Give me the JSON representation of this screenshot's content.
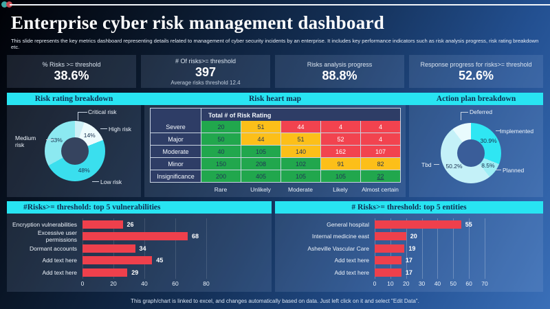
{
  "page": {
    "title": "Enterprise cyber risk management dashboard",
    "subtitle": "This slide represents the key metrics dashboard representing details related to management of cyber security incidents by an enterprise. It includes key performance indicators such as risk analysis progress, risk rating breakdown etc.",
    "footer": "This graph/chart is linked to excel, and changes automatically based on data. Just left click on it and select \"Edit Data\"."
  },
  "theme": {
    "accent_cyan": "#28e4f2",
    "bar_red": "#ee404c"
  },
  "kpis": [
    {
      "label": "% Risks >= threshold",
      "value": "38.6%"
    },
    {
      "label": "# Of risks>= threshold",
      "value": "397",
      "sub": "Average risks threshold 12.4"
    },
    {
      "label": "Risks analysis progress",
      "value": "88.8%"
    },
    {
      "label": "Response progress for risks>= threshold",
      "value": "52.6%"
    }
  ],
  "chart_data": [
    {
      "id": "risk_rating",
      "type": "pie",
      "donut": true,
      "title": "Risk rating breakdown",
      "segments": [
        {
          "label": "Critical risk",
          "value": 5,
          "pct": "",
          "color": "#cdeff6"
        },
        {
          "label": "High risk",
          "value": 14,
          "pct": "14%",
          "color": "#eefbfd"
        },
        {
          "label": "Low risk",
          "value": 48,
          "pct": "48%",
          "color": "#3adfee"
        },
        {
          "label": "Medium risk",
          "value": 33,
          "pct": "33%",
          "color": "#8ce9f1"
        }
      ]
    },
    {
      "id": "heat_map",
      "type": "heatmap",
      "title": "Risk heart map",
      "corner_label": "Total # of Risk Rating",
      "col_labels": [
        "Rare",
        "Unlikely",
        "Moderate",
        "Likely",
        "Almost certain"
      ],
      "palette": {
        "g": "#21a74d",
        "y": "#fcbf19",
        "r": "#f2434f"
      },
      "rows": [
        {
          "label": "Severe",
          "cells": [
            {
              "v": 20,
              "c": "g"
            },
            {
              "v": 51,
              "c": "y"
            },
            {
              "v": 44,
              "c": "r"
            },
            {
              "v": 4,
              "c": "r"
            },
            {
              "v": 4,
              "c": "r"
            }
          ]
        },
        {
          "label": "Major",
          "cells": [
            {
              "v": 50,
              "c": "g"
            },
            {
              "v": 44,
              "c": "y"
            },
            {
              "v": 51,
              "c": "y"
            },
            {
              "v": 52,
              "c": "r"
            },
            {
              "v": 4,
              "c": "r"
            }
          ]
        },
        {
          "label": "Moderate",
          "cells": [
            {
              "v": 40,
              "c": "g"
            },
            {
              "v": 105,
              "c": "g"
            },
            {
              "v": 140,
              "c": "y"
            },
            {
              "v": 162,
              "c": "r"
            },
            {
              "v": 107,
              "c": "r"
            }
          ]
        },
        {
          "label": "Minor",
          "cells": [
            {
              "v": 150,
              "c": "g"
            },
            {
              "v": 208,
              "c": "g"
            },
            {
              "v": 102,
              "c": "g"
            },
            {
              "v": 91,
              "c": "y"
            },
            {
              "v": 82,
              "c": "y"
            }
          ]
        },
        {
          "label": "Insignificance",
          "cells": [
            {
              "v": 200,
              "c": "g"
            },
            {
              "v": 405,
              "c": "g"
            },
            {
              "v": 105,
              "c": "g"
            },
            {
              "v": 105,
              "c": "g"
            },
            {
              "v": 22,
              "c": "g",
              "u": true
            }
          ]
        }
      ]
    },
    {
      "id": "action_plan",
      "type": "pie",
      "donut": true,
      "title": "Action plan breakdown",
      "segments": [
        {
          "label": "Implemented",
          "value": 30.9,
          "pct": "30.9%",
          "color": "#2fe6f3"
        },
        {
          "label": "Planned",
          "value": 8.5,
          "pct": "8.5%",
          "color": "#9deef5"
        },
        {
          "label": "Tbd",
          "value": 50.2,
          "pct": "50.2%",
          "color": "#c4f1f8"
        },
        {
          "label": "Deferred",
          "value": 10.4,
          "pct": "",
          "color": "#e9fbfd"
        }
      ]
    },
    {
      "id": "vulnerabilities",
      "type": "bar",
      "orientation": "horizontal",
      "title": "#Risks>= threshold: top 5 vulnerabilities",
      "categories": [
        "Encryption vulnerabilities",
        "Excessive user permissions",
        "Dormant accounts",
        "Add text here",
        "Add text here"
      ],
      "values": [
        26,
        68,
        34,
        45,
        29
      ],
      "ticks": [
        0,
        20,
        40,
        60,
        80
      ],
      "xmax": 120,
      "bar_color": "#ee404c"
    },
    {
      "id": "entities",
      "type": "bar",
      "orientation": "horizontal",
      "title": "# Risks>= threshold: top 5 entities",
      "categories": [
        "General hospital",
        "Internal medicine east",
        "Asheville Vascular Care",
        "Add text here",
        "Add text here"
      ],
      "values": [
        55,
        20,
        19,
        17,
        17
      ],
      "ticks": [
        0,
        10,
        20,
        30,
        40,
        50,
        60,
        70
      ],
      "xmax": 105,
      "bar_color": "#ee404c"
    }
  ]
}
